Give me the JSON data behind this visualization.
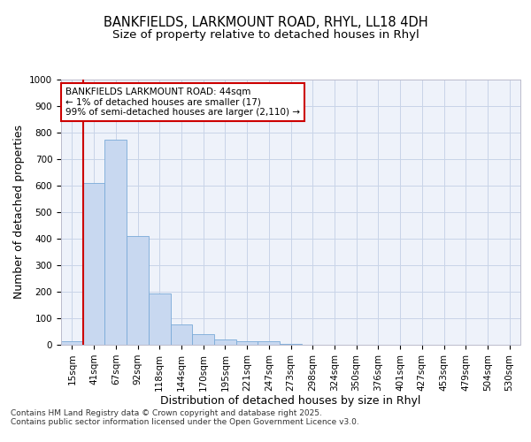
{
  "title1": "BANKFIELDS, LARKMOUNT ROAD, RHYL, LL18 4DH",
  "title2": "Size of property relative to detached houses in Rhyl",
  "xlabel": "Distribution of detached houses by size in Rhyl",
  "ylabel": "Number of detached properties",
  "bin_labels": [
    "15sqm",
    "41sqm",
    "67sqm",
    "92sqm",
    "118sqm",
    "144sqm",
    "170sqm",
    "195sqm",
    "221sqm",
    "247sqm",
    "273sqm",
    "298sqm",
    "324sqm",
    "350sqm",
    "376sqm",
    "401sqm",
    "427sqm",
    "453sqm",
    "479sqm",
    "504sqm",
    "530sqm"
  ],
  "bar_values": [
    15,
    610,
    775,
    410,
    192,
    78,
    40,
    20,
    15,
    12,
    5,
    0,
    0,
    0,
    0,
    0,
    0,
    0,
    0,
    0,
    0
  ],
  "bar_color": "#c8d8f0",
  "bar_edge_color": "#7aaad8",
  "grid_color": "#c8d4e8",
  "background_color": "#eef2fa",
  "vline_color": "#cc0000",
  "annotation_text": "BANKFIELDS LARKMOUNT ROAD: 44sqm\n← 1% of detached houses are smaller (17)\n99% of semi-detached houses are larger (2,110) →",
  "annotation_box_color": "#ffffff",
  "annotation_box_edge": "#cc0000",
  "ylim": [
    0,
    1000
  ],
  "yticks": [
    0,
    100,
    200,
    300,
    400,
    500,
    600,
    700,
    800,
    900,
    1000
  ],
  "footer_text": "Contains HM Land Registry data © Crown copyright and database right 2025.\nContains public sector information licensed under the Open Government Licence v3.0.",
  "title_fontsize": 10.5,
  "title2_fontsize": 9.5,
  "axis_label_fontsize": 9,
  "tick_fontsize": 7.5,
  "annotation_fontsize": 7.5,
  "footer_fontsize": 6.5
}
